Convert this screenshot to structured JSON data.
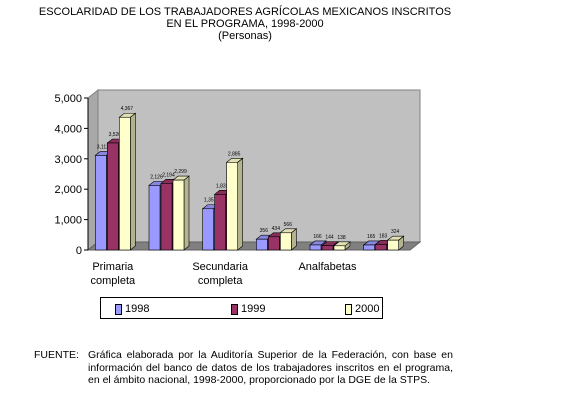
{
  "title_lines": [
    "ESCOLARIDAD DE LOS TRABAJADORES AGRÍCOLAS MEXICANOS INSCRITOS",
    "EN  EL PROGRAMA, 1998-2000",
    "(Personas)"
  ],
  "chart_data": {
    "type": "bar",
    "style": "3d-clustered",
    "categories": [
      "Primaria completa",
      "",
      "Secundaria completa",
      "",
      "Analfabetas",
      ""
    ],
    "category_labels": [
      {
        "line1": "Primaria",
        "line2": "completa"
      },
      {
        "line1": "",
        "line2": ""
      },
      {
        "line1": "Secundaria",
        "line2": "completa"
      },
      {
        "line1": "",
        "line2": ""
      },
      {
        "line1": "Analfabetas",
        "line2": ""
      },
      {
        "line1": "",
        "line2": ""
      }
    ],
    "series": [
      {
        "name": "1998",
        "color": "#9999ff",
        "values": [
          3112,
          2126,
          1357,
          356,
          166,
          165
        ],
        "labels": [
          "3,112",
          "2,126",
          "1,357",
          "356",
          "166",
          "165"
        ]
      },
      {
        "name": "1999",
        "color": "#993366",
        "values": [
          3520,
          2194,
          1831,
          434,
          144,
          183
        ],
        "labels": [
          "3,520",
          "2,194",
          "1,831",
          "434",
          "144",
          "183"
        ]
      },
      {
        "name": "2000",
        "color": "#ffffcc",
        "values": [
          4367,
          2299,
          2885,
          566,
          138,
          324
        ],
        "labels": [
          "4,367",
          "2,299",
          "2,885",
          "566",
          "138",
          "324"
        ]
      }
    ],
    "yticks": [
      0,
      1000,
      2000,
      3000,
      4000,
      5000
    ],
    "ytick_labels": [
      "0",
      "1,000",
      "2,000",
      "3,000",
      "4,000",
      "5,000"
    ],
    "ylim": [
      0,
      5000
    ],
    "grid": false,
    "legend": "bottom"
  },
  "source": {
    "label": "FUENTE:",
    "text": "Gráfica elaborada por la Auditoría Superior de la Federación, con base en información del banco de datos de  los trabajadores inscritos en el programa, en el ámbito nacional, 1998-2000, proporcionado por la DGE de la STPS."
  }
}
